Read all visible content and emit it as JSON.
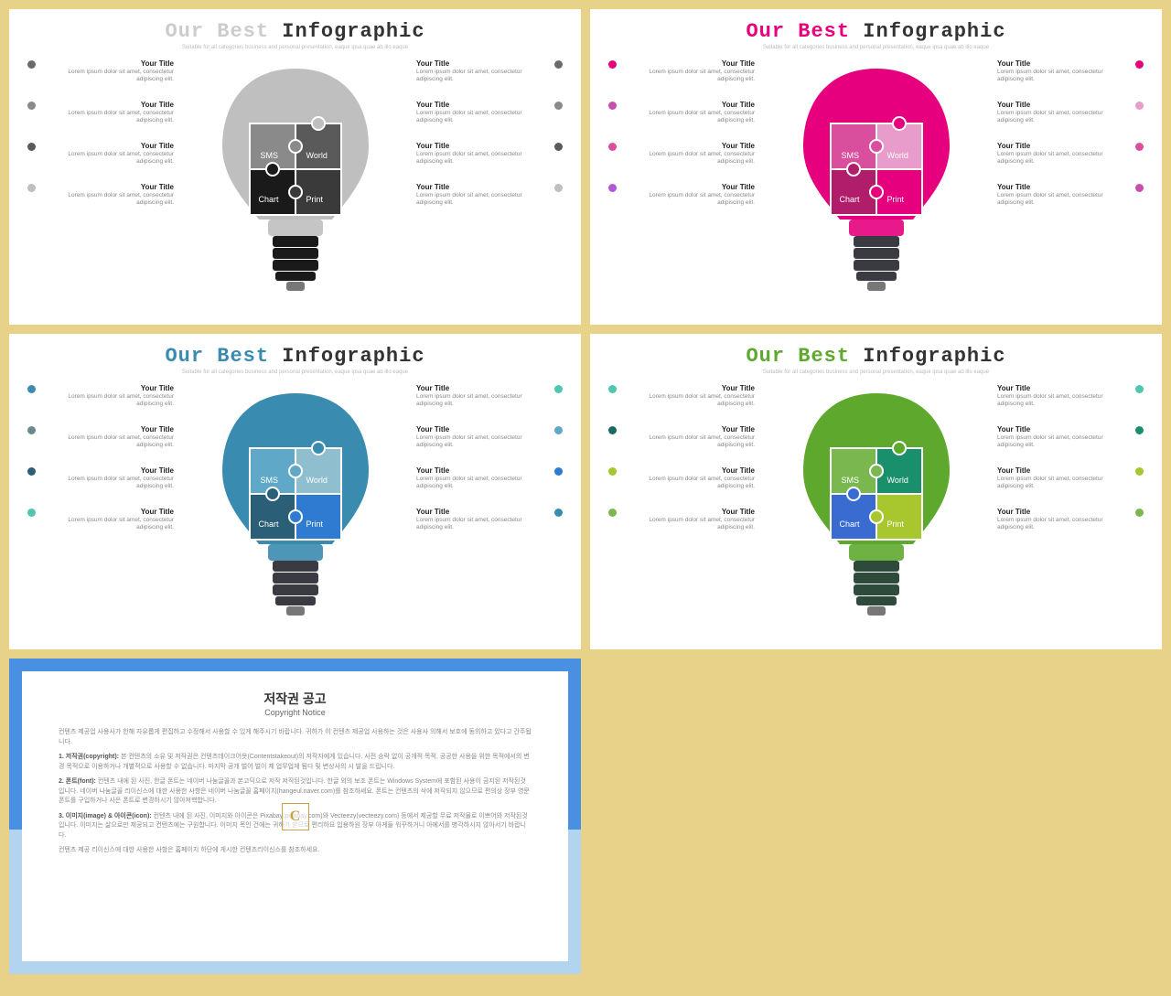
{
  "page_bg": "#e8d28a",
  "item_default": {
    "title": "Your Title",
    "body": "Lorem ipsum dolor sit amet, consectetur adipiscing elit."
  },
  "puzzle_labels": [
    "SMS",
    "World",
    "Chart",
    "Print"
  ],
  "slides": [
    {
      "title1": "Our Best",
      "title2": "Infographic",
      "title1_color": "#cccccc",
      "title2_color": "#333333",
      "subtitle": "Suitable for all categories business and personal presentation, eaque ipsa quae ab illo eaque",
      "bulb_top": "#bfbfbf",
      "puzzle_colors": [
        "#8a8a8a",
        "#5a5a5a",
        "#1a1a1a",
        "#3a3a3a"
      ],
      "base_color": "#1a1a1a",
      "left_dots": [
        "#6b6b6b",
        "#8a8a8a",
        "#5a5a5a",
        "#bfbfbf"
      ],
      "right_dots": [
        "#6b6b6b",
        "#8a8a8a",
        "#5a5a5a",
        "#bfbfbf"
      ]
    },
    {
      "title1": "Our Best",
      "title2": "Infographic",
      "title1_color": "#e6007e",
      "title2_color": "#333333",
      "subtitle": "Suitable for all categories business and personal presentation, eaque ipsa quae ab illo eaque",
      "bulb_top": "#e6007e",
      "puzzle_colors": [
        "#d94f9e",
        "#e89ccb",
        "#b01e6b",
        "#e6007e"
      ],
      "base_color": "#3a3a42",
      "left_dots": [
        "#e6007e",
        "#c74fb0",
        "#d94f9e",
        "#b456d6"
      ],
      "right_dots": [
        "#e6007e",
        "#e89ccb",
        "#d94f9e",
        "#c74fb0"
      ]
    },
    {
      "title1": "Our Best",
      "title2": "Infographic",
      "title1_color": "#3a8bb0",
      "title2_color": "#333333",
      "subtitle": "Suitable for all categories business and personal presentation, eaque ipsa quae ab illo eaque",
      "bulb_top": "#3a8bb0",
      "puzzle_colors": [
        "#5fa8c7",
        "#8fbecf",
        "#2b5f78",
        "#2e7bd1"
      ],
      "base_color": "#3a3a42",
      "left_dots": [
        "#3a8bb0",
        "#6b8a8f",
        "#2b5f78",
        "#4fc7b0"
      ],
      "right_dots": [
        "#4fc7b0",
        "#5fa8c7",
        "#2e7bd1",
        "#3a8bb0"
      ]
    },
    {
      "title1": "Our Best",
      "title2": "Infographic",
      "title1_color": "#5fa82e",
      "title2_color": "#333333",
      "subtitle": "Suitable for all categories business and personal presentation, eaque ipsa quae ab illo eaque",
      "bulb_top": "#5fa82e",
      "puzzle_colors": [
        "#7ab84f",
        "#1a8f6b",
        "#3a6bd1",
        "#a8c72e"
      ],
      "base_color": "#2e4a3a",
      "left_dots": [
        "#4fc7b0",
        "#1a6b5f",
        "#a8c72e",
        "#7ab84f"
      ],
      "right_dots": [
        "#4fc7b0",
        "#1a8f6b",
        "#a8c72e",
        "#7ab84f"
      ]
    }
  ],
  "copyright": {
    "border_top": "#4a90e2",
    "border_bottom": "#b3d4ef",
    "title": "저작권 공고",
    "subtitle": "Copyright Notice",
    "p1": "컨텐츠 제공업 사용사가 한해 자유롭게 편집하고 수정해서 사용할 수 있게 해주시기 바랍니다. 귀하가 이 컨텐츠 제공업 사용하는 것은 사용사 의해서 보호에 동의하고 있다고 간주됩니다.",
    "h1": "1. 저작권(copyright):",
    "p2": "본 컨텐츠의 소유 및 저작권은 컨텐츠데이크어옷(Contentstakeout)의 저작자에게 있습니다. 사전 승락 없이 공개적 목적, 공공한 사용을 위한 목적에서의 변경 목적으로 이용하거나 개별적으로 사용할 수 없습니다. 마지막 공개 벌어 벌이 제 업무업체 됨다 및 변상사의 시 발을 드립니다.",
    "h2": "2. 폰트(font):",
    "p3": "컨텐츠 내에 된 사진, 한글 폰트는 네이버 나눔글꼴과 본고딕으로 저작 저작된것입니다. 한글 외의 보조 폰트는 Windows System에 포함된 사용이 금지된 저작된것입니다. 네이버 나눔글꼴 리이신스에 대한 사용한 사항은 네이버 나눔글꼴 홈페이지(hangeul.naver.com)를 참조하세요. 폰트는 컨텐츠의 삭에 저작되지 않으므로 편의상 장부 영문폰트를 구입하거나 사은 폰트로 변경하시기 않아져핵합니다.",
    "h3": "3. 이미지(image) & 아이콘(icon):",
    "p4": "컨텐츠 내에 된 사진, 이미지와 아이콘은 Pixabay(pixabay.com)와 Vecteezy(vecteezy.com) 등에서 제공할 무료 저작물로 이쁘어와 저작된것입니다. 이미지는 삶으로만 제공되고 컨텐츠에는 구원합니다. 이미지 목인 건에는 귀하가 받므로 편리하요 입용하원 장부 아게들 워꾸하거니 아에서를 병각하시지 않아서기 바랍니다.",
    "p5": "컨텐츠 제공 리이신스에 대한 사용한 사항은 홈페이지 하단에 게시한 컨텐츠리이신스를 참조하세요."
  }
}
